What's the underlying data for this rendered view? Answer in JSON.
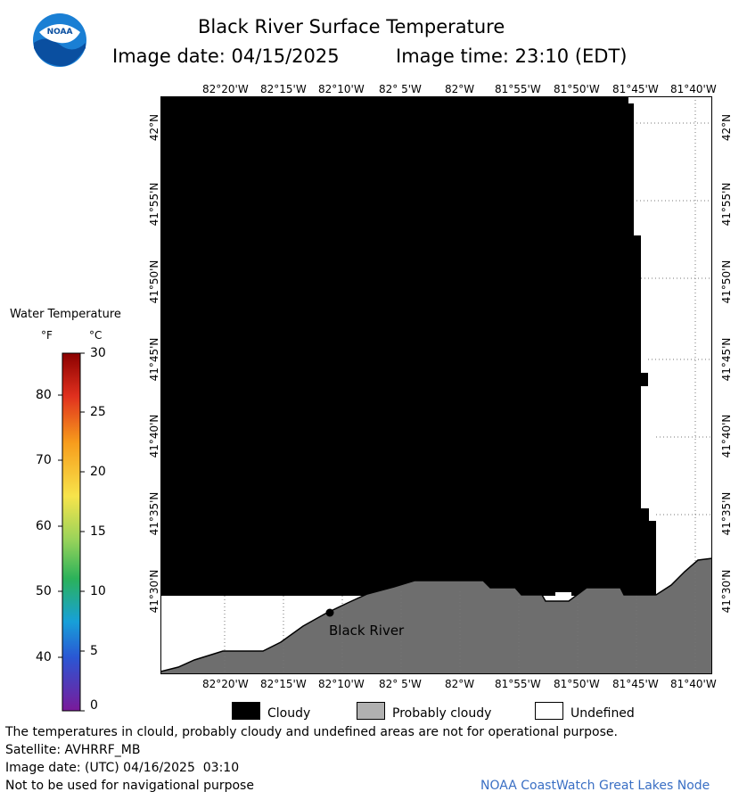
{
  "header": {
    "title": "Black River Surface Temperature",
    "image_date_label": "Image date: 04/15/2025",
    "image_time_label": "Image time: 23:10 (EDT)",
    "logo_text": "NOAA"
  },
  "map": {
    "lon_labels": [
      "82°20'W",
      "82°15'W",
      "82°10'W",
      "82° 5'W",
      "82°W",
      "81°55'W",
      "81°50'W",
      "81°45'W",
      "81°40'W"
    ],
    "lat_labels": [
      "42°N",
      "41°55'N",
      "41°50'N",
      "41°45'N",
      "41°40'N",
      "41°35'N",
      "41°30'N"
    ],
    "place_label": "Black River",
    "colors": {
      "cloudy": "#000000",
      "probably_cloudy": "#6e6e6e",
      "undefined": "#ffffff"
    }
  },
  "colorbar": {
    "title": "Water Temperature",
    "unit_f": "°F",
    "unit_c": "°C",
    "f_ticks": [
      "80",
      "70",
      "60",
      "50",
      "40"
    ],
    "c_ticks": [
      "30",
      "25",
      "20",
      "15",
      "10",
      "5",
      "0"
    ]
  },
  "legend": {
    "cloudy": "Cloudy",
    "probably_cloudy": "Probably cloudy",
    "undefined": "Undefined"
  },
  "footer": {
    "disclaimer": "The temperatures in clould, probably cloudy and undefined areas are not for operational purpose.",
    "satellite": "Satellite: AVHRRF_MB",
    "utc_date": "Image date: (UTC) 04/16/2025  03:10",
    "nav_warning": "Not to be used for navigational purpose",
    "credit": "NOAA CoastWatch Great Lakes Node"
  }
}
